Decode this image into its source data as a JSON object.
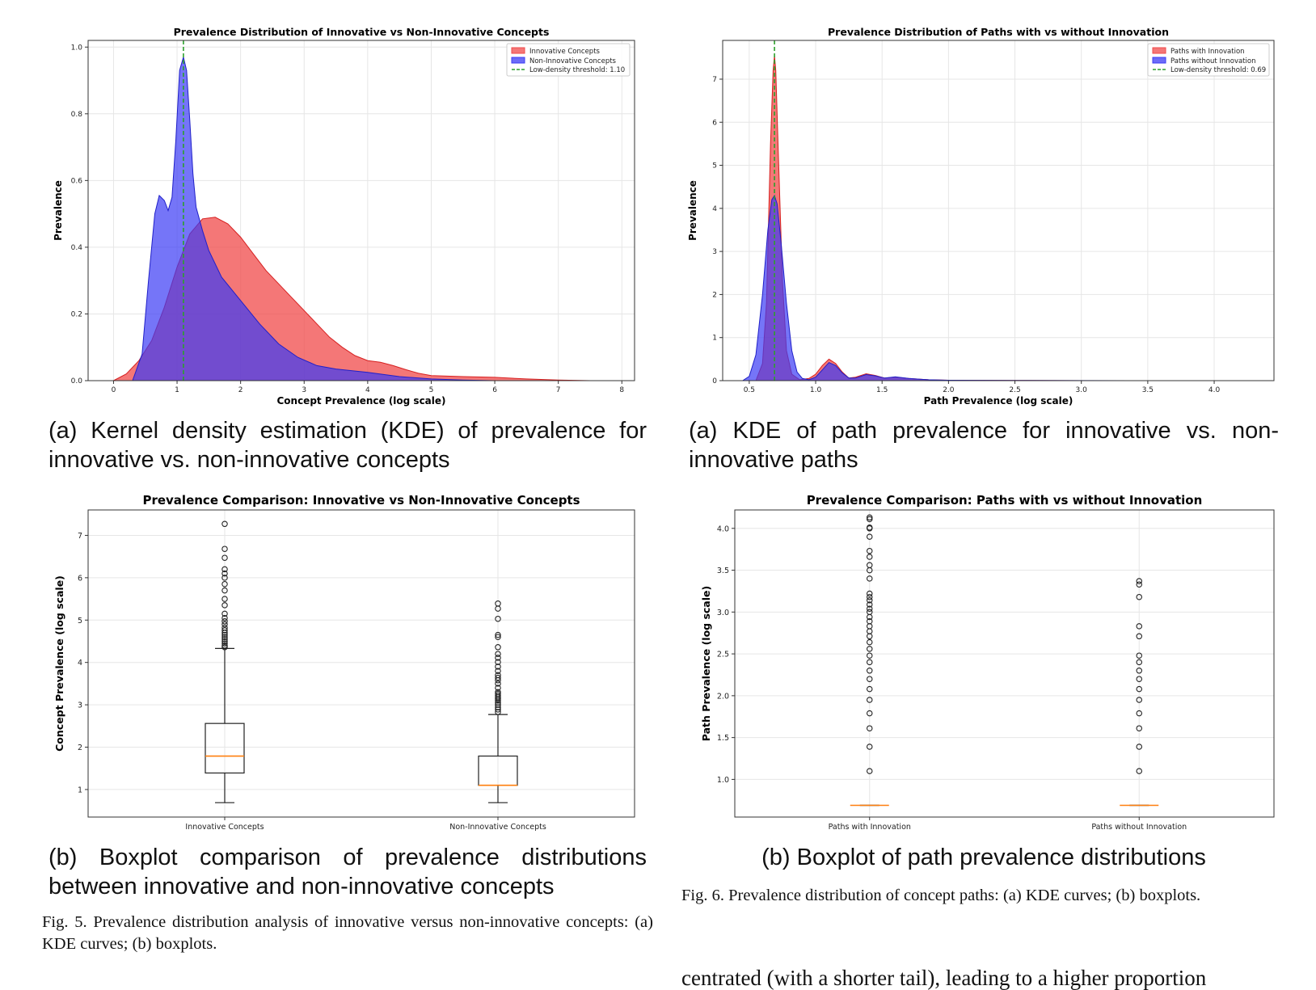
{
  "captions": {
    "fig5a": "(a) Kernel density estimation (KDE) of prevalence for innovative vs. non-innovative concepts",
    "fig6a": "(a) KDE of path prevalence for innovative vs. non-innovative paths",
    "fig5b": "(b) Boxplot comparison of prevalence distributions between innovative and non-innovative concepts",
    "fig6b": "(b) Boxplot of path prevalence distributions",
    "fig5": "Fig. 5.  Prevalence distribution analysis of innovative versus non-innovative concepts: (a) KDE curves; (b) boxplots.",
    "fig6": "Fig. 6.  Prevalence distribution of concept paths: (a) KDE curves; (b) boxplots.",
    "body_fragment": "centrated (with a shorter tail), leading to a higher proportion"
  },
  "colors": {
    "innovative": "#f04a4a",
    "non_innovative": "#3b3bf5",
    "overlap": "#7a28b8",
    "threshold": "#2ca02c",
    "median": "#ff7f0e",
    "grid": "#e6e6e6"
  },
  "chart_data": [
    {
      "id": "kde-concepts",
      "type": "area",
      "title": "Prevalence Distribution of Innovative vs Non-Innovative Concepts",
      "xlabel": "Concept Prevalence (log scale)",
      "ylabel": "Prevalence",
      "xlim": [
        -0.4,
        8.2
      ],
      "ylim": [
        0,
        1.02
      ],
      "xticks": [
        0,
        1,
        2,
        3,
        4,
        5,
        6,
        7,
        8
      ],
      "yticks": [
        0.0,
        0.2,
        0.4,
        0.6,
        0.8,
        1.0
      ],
      "grid": true,
      "legend_position": "top-right",
      "legend": [
        "Innovative Concepts",
        "Non-Innovative Concepts",
        "Low-density threshold: 1.10"
      ],
      "threshold": 1.1,
      "series": [
        {
          "name": "Innovative Concepts",
          "x": [
            0,
            0.2,
            0.4,
            0.6,
            0.8,
            1.0,
            1.2,
            1.4,
            1.6,
            1.8,
            2.0,
            2.2,
            2.4,
            2.6,
            2.8,
            3.0,
            3.2,
            3.4,
            3.6,
            3.8,
            4.0,
            4.2,
            4.4,
            4.6,
            4.8,
            5.0,
            5.5,
            6.0,
            6.5,
            7.0,
            7.5
          ],
          "y": [
            0.0,
            0.02,
            0.06,
            0.12,
            0.22,
            0.34,
            0.44,
            0.485,
            0.49,
            0.47,
            0.43,
            0.38,
            0.33,
            0.29,
            0.25,
            0.21,
            0.17,
            0.13,
            0.1,
            0.075,
            0.06,
            0.055,
            0.045,
            0.033,
            0.022,
            0.015,
            0.012,
            0.01,
            0.005,
            0.002,
            0.0
          ]
        },
        {
          "name": "Non-Innovative Concepts",
          "x": [
            0.3,
            0.45,
            0.55,
            0.65,
            0.72,
            0.8,
            0.86,
            0.92,
            0.98,
            1.04,
            1.1,
            1.15,
            1.2,
            1.25,
            1.3,
            1.4,
            1.5,
            1.7,
            2.0,
            2.3,
            2.6,
            2.9,
            3.2,
            3.5,
            4.0,
            4.5,
            5.0,
            5.5,
            6.0
          ],
          "y": [
            0.0,
            0.08,
            0.3,
            0.5,
            0.555,
            0.54,
            0.51,
            0.55,
            0.72,
            0.93,
            0.97,
            0.93,
            0.78,
            0.62,
            0.52,
            0.45,
            0.39,
            0.31,
            0.24,
            0.17,
            0.11,
            0.07,
            0.045,
            0.035,
            0.025,
            0.012,
            0.005,
            0.002,
            0.0
          ]
        }
      ]
    },
    {
      "id": "kde-paths",
      "type": "area",
      "title": "Prevalence Distribution of Paths with vs without Innovation",
      "xlabel": "Path Prevalence (log scale)",
      "ylabel": "Prevalence",
      "xlim": [
        0.3,
        4.45
      ],
      "ylim": [
        0,
        7.9
      ],
      "xticks": [
        0.5,
        1.0,
        1.5,
        2.0,
        2.5,
        3.0,
        3.5,
        4.0
      ],
      "yticks": [
        0,
        1,
        2,
        3,
        4,
        5,
        6,
        7
      ],
      "grid": true,
      "legend_position": "top-right",
      "legend": [
        "Paths with Innovation",
        "Paths without Innovation",
        "Low-density threshold: 0.69"
      ],
      "threshold": 0.69,
      "series": [
        {
          "name": "Paths with Innovation",
          "x": [
            0.55,
            0.6,
            0.63,
            0.66,
            0.68,
            0.69,
            0.7,
            0.72,
            0.75,
            0.78,
            0.82,
            0.88,
            0.95,
            1.0,
            1.05,
            1.1,
            1.15,
            1.2,
            1.25,
            1.3,
            1.38,
            1.45,
            1.52,
            1.6,
            1.7,
            1.85,
            2.0,
            2.5,
            3.0
          ],
          "y": [
            0.0,
            0.4,
            1.8,
            5.5,
            7.2,
            7.55,
            7.2,
            5.2,
            2.3,
            0.7,
            0.15,
            0.02,
            0.05,
            0.15,
            0.35,
            0.5,
            0.4,
            0.2,
            0.06,
            0.08,
            0.16,
            0.12,
            0.06,
            0.08,
            0.05,
            0.02,
            0.01,
            0.005,
            0.0
          ]
        },
        {
          "name": "Paths without Innovation",
          "x": [
            0.45,
            0.5,
            0.55,
            0.6,
            0.64,
            0.67,
            0.69,
            0.71,
            0.74,
            0.78,
            0.82,
            0.86,
            0.9,
            0.95,
            1.0,
            1.05,
            1.1,
            1.15,
            1.2,
            1.25,
            1.3,
            1.38,
            1.45,
            1.52,
            1.6,
            1.7,
            1.85,
            2.0,
            2.5,
            3.5
          ],
          "y": [
            0.0,
            0.1,
            0.6,
            2.0,
            3.5,
            4.2,
            4.3,
            4.1,
            3.2,
            1.8,
            0.7,
            0.2,
            0.05,
            0.02,
            0.08,
            0.25,
            0.42,
            0.35,
            0.18,
            0.06,
            0.06,
            0.14,
            0.11,
            0.06,
            0.09,
            0.05,
            0.02,
            0.01,
            0.005,
            0.0
          ]
        }
      ]
    },
    {
      "id": "box-concepts",
      "type": "boxplot",
      "title": "Prevalence Comparison: Innovative vs Non-Innovative Concepts",
      "ylabel": "Concept Prevalence (log scale)",
      "ylim": [
        0.35,
        7.6
      ],
      "yticks": [
        1,
        2,
        3,
        4,
        5,
        6,
        7
      ],
      "grid": true,
      "categories": [
        "Innovative Concepts",
        "Non-Innovative Concepts"
      ],
      "boxes": [
        {
          "whisker_low": 0.69,
          "q1": 1.39,
          "median": 1.79,
          "q3": 2.56,
          "whisker_high": 4.33,
          "outliers": [
            4.36,
            4.4,
            4.45,
            4.5,
            4.55,
            4.6,
            4.65,
            4.7,
            4.76,
            4.82,
            4.9,
            4.97,
            5.05,
            5.15,
            5.35,
            5.5,
            5.7,
            5.85,
            6.0,
            6.1,
            6.2,
            6.47,
            6.68,
            7.27
          ]
        },
        {
          "whisker_low": 0.69,
          "q1": 1.1,
          "median": 1.1,
          "q3": 1.79,
          "whisker_high": 2.77,
          "outliers": [
            2.83,
            2.89,
            2.94,
            3.0,
            3.05,
            3.1,
            3.14,
            3.18,
            3.22,
            3.26,
            3.3,
            3.4,
            3.5,
            3.58,
            3.64,
            3.7,
            3.8,
            3.9,
            4.01,
            4.11,
            4.2,
            4.36,
            4.6,
            4.65,
            5.03,
            5.27,
            5.39
          ]
        }
      ]
    },
    {
      "id": "box-paths",
      "type": "boxplot",
      "title": "Prevalence Comparison: Paths with vs without Innovation",
      "ylabel": "Path Prevalence (log scale)",
      "ylim": [
        0.55,
        4.22
      ],
      "yticks": [
        1.0,
        1.5,
        2.0,
        2.5,
        3.0,
        3.5,
        4.0
      ],
      "grid": true,
      "categories": [
        "Paths with Innovation",
        "Paths without Innovation"
      ],
      "boxes": [
        {
          "whisker_low": 0.69,
          "q1": 0.69,
          "median": 0.69,
          "q3": 0.69,
          "whisker_high": 0.69,
          "outliers": [
            1.1,
            1.39,
            1.61,
            1.79,
            1.95,
            2.08,
            2.2,
            2.3,
            2.4,
            2.48,
            2.56,
            2.64,
            2.71,
            2.77,
            2.83,
            2.89,
            2.94,
            3.0,
            3.04,
            3.09,
            3.14,
            3.18,
            3.22,
            3.4,
            3.5,
            3.56,
            3.66,
            3.73,
            3.9,
            4.0,
            4.01,
            4.11,
            4.13
          ]
        },
        {
          "whisker_low": 0.69,
          "q1": 0.69,
          "median": 0.69,
          "q3": 0.69,
          "whisker_high": 0.69,
          "outliers": [
            1.1,
            1.39,
            1.61,
            1.79,
            1.95,
            2.08,
            2.2,
            2.3,
            2.4,
            2.48,
            2.71,
            2.83,
            3.18,
            3.33,
            3.37
          ]
        }
      ]
    }
  ]
}
